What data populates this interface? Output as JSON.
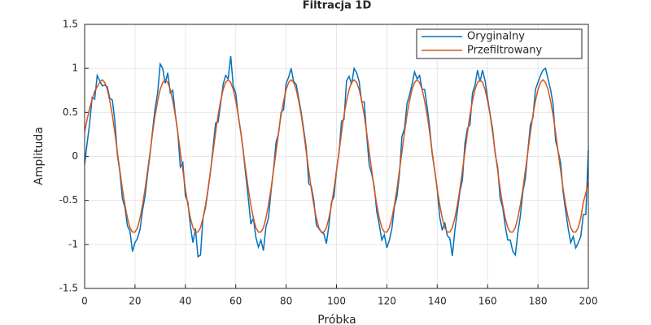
{
  "chart_data": {
    "type": "line",
    "title": "Filtracja 1D",
    "x_label": "Próbka",
    "y_label": "Amplituda",
    "x": [
      0,
      1,
      2,
      3,
      4,
      5,
      6,
      7,
      8,
      9,
      10,
      11,
      12,
      13,
      14,
      15,
      16,
      17,
      18,
      19,
      20,
      21,
      22,
      23,
      24,
      25,
      26,
      27,
      28,
      29,
      30,
      31,
      32,
      33,
      34,
      35,
      36,
      37,
      38,
      39,
      40,
      41,
      42,
      43,
      44,
      45,
      46,
      47,
      48,
      49,
      50,
      51,
      52,
      53,
      54,
      55,
      56,
      57,
      58,
      59,
      60,
      61,
      62,
      63,
      64,
      65,
      66,
      67,
      68,
      69,
      70,
      71,
      72,
      73,
      74,
      75,
      76,
      77,
      78,
      79,
      80,
      81,
      82,
      83,
      84,
      85,
      86,
      87,
      88,
      89,
      90,
      91,
      92,
      93,
      94,
      95,
      96,
      97,
      98,
      99,
      100,
      101,
      102,
      103,
      104,
      105,
      106,
      107,
      108,
      109,
      110,
      111,
      112,
      113,
      114,
      115,
      116,
      117,
      118,
      119,
      120,
      121,
      122,
      123,
      124,
      125,
      126,
      127,
      128,
      129,
      130,
      131,
      132,
      133,
      134,
      135,
      136,
      137,
      138,
      139,
      140,
      141,
      142,
      143,
      144,
      145,
      146,
      147,
      148,
      149,
      150,
      151,
      152,
      153,
      154,
      155,
      156,
      157,
      158,
      159,
      160,
      161,
      162,
      163,
      164,
      165,
      166,
      167,
      168,
      169,
      170,
      171,
      172,
      173,
      174,
      175,
      176,
      177,
      178,
      179,
      180,
      181,
      182,
      183,
      184,
      185,
      186,
      187,
      188,
      189,
      190,
      191,
      192,
      193,
      194,
      195,
      196,
      197,
      198,
      199,
      200
    ],
    "series": [
      {
        "name": "Oryginalny",
        "color": "#0072bd",
        "values": [
          -0.09,
          0.15,
          0.38,
          0.67,
          0.65,
          0.92,
          0.86,
          0.8,
          0.81,
          0.79,
          0.66,
          0.64,
          0.4,
          0.02,
          -0.18,
          -0.48,
          -0.58,
          -0.79,
          -0.85,
          -1.08,
          -0.98,
          -0.93,
          -0.83,
          -0.61,
          -0.45,
          -0.2,
          0.03,
          0.3,
          0.55,
          0.72,
          1.05,
          1.0,
          0.83,
          0.95,
          0.72,
          0.75,
          0.48,
          0.26,
          -0.12,
          -0.07,
          -0.45,
          -0.52,
          -0.79,
          -0.98,
          -0.82,
          -1.14,
          -1.12,
          -0.7,
          -0.58,
          -0.38,
          -0.17,
          0.1,
          0.38,
          0.39,
          0.6,
          0.82,
          0.92,
          0.88,
          1.14,
          0.8,
          0.72,
          0.46,
          0.28,
          0.06,
          -0.22,
          -0.48,
          -0.77,
          -0.7,
          -0.92,
          -1.03,
          -0.95,
          -1.07,
          -0.8,
          -0.7,
          -0.4,
          -0.15,
          0.16,
          0.26,
          0.5,
          0.53,
          0.83,
          0.9,
          1.0,
          0.85,
          0.82,
          0.66,
          0.5,
          0.3,
          0.1,
          -0.31,
          -0.34,
          -0.5,
          -0.78,
          -0.82,
          -0.86,
          -0.88,
          -0.99,
          -0.78,
          -0.52,
          -0.46,
          -0.16,
          0.04,
          0.4,
          0.42,
          0.86,
          0.91,
          0.82,
          1.0,
          0.95,
          0.85,
          0.62,
          0.62,
          0.24,
          -0.1,
          -0.2,
          -0.34,
          -0.63,
          -0.78,
          -0.95,
          -0.89,
          -1.04,
          -0.95,
          -0.82,
          -0.57,
          -0.46,
          -0.2,
          0.23,
          0.31,
          0.6,
          0.7,
          0.82,
          0.96,
          0.88,
          0.92,
          0.76,
          0.76,
          0.56,
          0.33,
          0.03,
          -0.16,
          -0.38,
          -0.69,
          -0.84,
          -0.75,
          -0.9,
          -0.93,
          -1.13,
          -0.84,
          -0.62,
          -0.4,
          -0.27,
          0.15,
          0.32,
          0.36,
          0.72,
          0.81,
          0.98,
          0.85,
          0.98,
          0.86,
          0.66,
          0.48,
          0.31,
          0.03,
          -0.12,
          -0.48,
          -0.58,
          -0.79,
          -0.95,
          -0.95,
          -1.08,
          -1.12,
          -0.87,
          -0.68,
          -0.4,
          -0.25,
          0.07,
          0.36,
          0.44,
          0.76,
          0.84,
          0.92,
          0.98,
          1.0,
          0.88,
          0.76,
          0.59,
          0.18,
          0.06,
          -0.07,
          -0.41,
          -0.62,
          -0.82,
          -0.98,
          -0.91,
          -1.04,
          -0.98,
          -0.91,
          -0.66,
          -0.66,
          0.07
        ]
      },
      {
        "name": "Przefiltrowany",
        "color": "#d95319",
        "values": [
          0.28,
          0.42,
          0.55,
          0.65,
          0.74,
          0.79,
          0.84,
          0.87,
          0.84,
          0.76,
          0.63,
          0.47,
          0.27,
          0.05,
          -0.16,
          -0.37,
          -0.55,
          -0.7,
          -0.81,
          -0.86,
          -0.86,
          -0.81,
          -0.7,
          -0.55,
          -0.37,
          -0.16,
          0.05,
          0.27,
          0.47,
          0.63,
          0.76,
          0.84,
          0.87,
          0.84,
          0.76,
          0.63,
          0.47,
          0.27,
          0.05,
          -0.16,
          -0.37,
          -0.55,
          -0.7,
          -0.81,
          -0.86,
          -0.86,
          -0.81,
          -0.7,
          -0.55,
          -0.37,
          -0.16,
          0.05,
          0.27,
          0.47,
          0.63,
          0.76,
          0.84,
          0.87,
          0.84,
          0.76,
          0.63,
          0.47,
          0.27,
          0.05,
          -0.16,
          -0.37,
          -0.55,
          -0.7,
          -0.81,
          -0.86,
          -0.86,
          -0.81,
          -0.7,
          -0.55,
          -0.37,
          -0.16,
          0.05,
          0.27,
          0.47,
          0.63,
          0.76,
          0.84,
          0.87,
          0.84,
          0.76,
          0.63,
          0.47,
          0.27,
          0.05,
          -0.16,
          -0.37,
          -0.55,
          -0.7,
          -0.81,
          -0.86,
          -0.86,
          -0.81,
          -0.7,
          -0.55,
          -0.37,
          -0.16,
          0.05,
          0.27,
          0.47,
          0.63,
          0.76,
          0.84,
          0.87,
          0.84,
          0.76,
          0.63,
          0.47,
          0.27,
          0.05,
          -0.16,
          -0.37,
          -0.55,
          -0.7,
          -0.81,
          -0.86,
          -0.86,
          -0.81,
          -0.7,
          -0.55,
          -0.37,
          -0.16,
          0.05,
          0.27,
          0.47,
          0.63,
          0.76,
          0.84,
          0.87,
          0.84,
          0.76,
          0.63,
          0.47,
          0.27,
          0.05,
          -0.16,
          -0.37,
          -0.55,
          -0.7,
          -0.81,
          -0.86,
          -0.86,
          -0.81,
          -0.7,
          -0.55,
          -0.37,
          -0.16,
          0.05,
          0.27,
          0.47,
          0.63,
          0.76,
          0.84,
          0.87,
          0.84,
          0.76,
          0.63,
          0.47,
          0.27,
          0.05,
          -0.16,
          -0.37,
          -0.55,
          -0.7,
          -0.81,
          -0.86,
          -0.86,
          -0.81,
          -0.7,
          -0.55,
          -0.37,
          -0.16,
          0.05,
          0.27,
          0.47,
          0.63,
          0.76,
          0.84,
          0.87,
          0.84,
          0.76,
          0.63,
          0.47,
          0.27,
          0.05,
          -0.16,
          -0.37,
          -0.55,
          -0.7,
          -0.81,
          -0.86,
          -0.86,
          -0.81,
          -0.7,
          -0.52,
          -0.42,
          -0.3
        ]
      }
    ],
    "xlim": [
      0,
      200
    ],
    "xticks": [
      0,
      20,
      40,
      60,
      80,
      100,
      120,
      140,
      160,
      180,
      200
    ],
    "ylim": [
      -1.5,
      1.5
    ],
    "yticks": [
      -1.5,
      -1,
      -0.5,
      0,
      0.5,
      1,
      1.5
    ],
    "grid": true,
    "legend": "upper right"
  }
}
